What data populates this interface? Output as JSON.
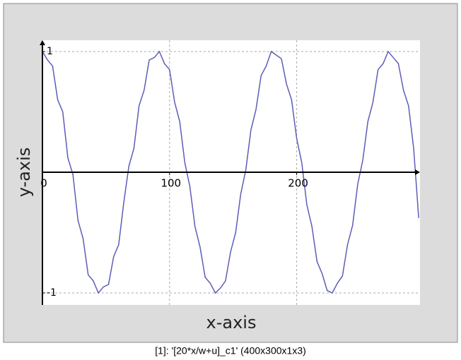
{
  "chart_data": {
    "type": "line",
    "xlabel": "x-axis",
    "ylabel": "y-axis",
    "x": [
      0,
      4,
      8,
      12,
      16,
      20,
      24,
      28,
      32,
      36,
      40,
      44,
      48,
      52,
      56,
      60,
      64,
      68,
      72,
      76,
      80,
      84,
      88,
      92,
      96,
      100,
      104,
      108,
      112,
      116,
      120,
      124,
      128,
      132,
      136,
      140,
      144,
      148,
      152,
      156,
      160,
      164,
      168,
      172,
      176,
      180,
      184,
      188,
      192,
      196,
      200,
      204,
      208,
      212,
      216,
      220,
      224,
      228,
      232,
      236,
      240,
      244,
      248,
      252,
      256,
      260,
      264,
      268,
      272,
      276,
      280,
      284,
      288,
      292,
      296
    ],
    "series": [
      {
        "color": "#5d5db8",
        "values": [
          1,
          0.93,
          0.88,
          0.6,
          0.5,
          0.12,
          -0.02,
          -0.4,
          -0.55,
          -0.85,
          -0.9,
          -1,
          -0.95,
          -0.93,
          -0.7,
          -0.6,
          -0.25,
          0.05,
          0.2,
          0.55,
          0.68,
          0.93,
          0.95,
          1,
          0.9,
          0.85,
          0.58,
          0.42,
          0.08,
          -0.12,
          -0.45,
          -0.62,
          -0.87,
          -0.92,
          -1,
          -0.96,
          -0.9,
          -0.66,
          -0.5,
          -0.18,
          0.02,
          0.35,
          0.52,
          0.8,
          0.88,
          1,
          0.97,
          0.94,
          0.73,
          0.6,
          0.28,
          0.08,
          -0.27,
          -0.45,
          -0.74,
          -0.84,
          -0.98,
          -1,
          -0.92,
          -0.86,
          -0.6,
          -0.44,
          -0.1,
          0.1,
          0.42,
          0.58,
          0.85,
          0.9,
          1,
          0.95,
          0.9,
          0.68,
          0.55,
          0.2,
          -0.38
        ]
      }
    ],
    "xlim": [
      0,
      297
    ],
    "ylim": [
      -1,
      1
    ],
    "xticks": [
      0,
      100,
      200
    ],
    "yticks": [
      -1,
      1
    ],
    "grid": true
  },
  "caption": "[1]: '[20*x/w+u]_c1' (400x300x1x3)"
}
